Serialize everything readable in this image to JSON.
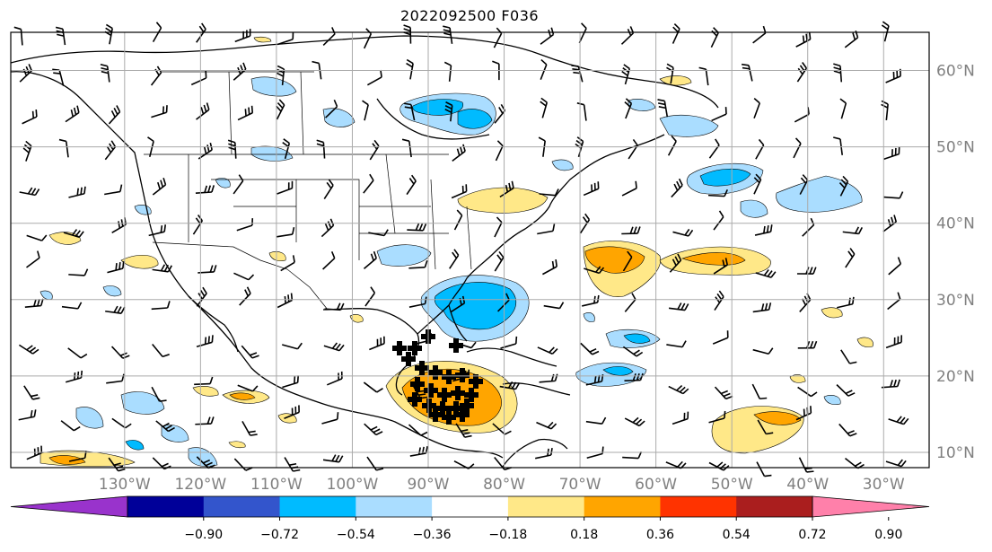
{
  "title": "2022092500 F036",
  "map": {
    "projection": "PlateCarree",
    "lon_range": [
      -145,
      -24
    ],
    "lat_range": [
      8,
      65
    ],
    "lon_ticks": [
      {
        "lon": -130,
        "label": "130°W"
      },
      {
        "lon": -120,
        "label": "120°W"
      },
      {
        "lon": -110,
        "label": "110°W"
      },
      {
        "lon": -100,
        "label": "100°W"
      },
      {
        "lon": -90,
        "label": "90°W"
      },
      {
        "lon": -80,
        "label": "80°W"
      },
      {
        "lon": -70,
        "label": "70°W"
      },
      {
        "lon": -60,
        "label": "60°W"
      },
      {
        "lon": -50,
        "label": "50°W"
      },
      {
        "lon": -40,
        "label": "40°W"
      },
      {
        "lon": -30,
        "label": "30°W"
      }
    ],
    "lat_ticks": [
      {
        "lat": 60,
        "label": "60°N"
      },
      {
        "lat": 50,
        "label": "50°N"
      },
      {
        "lat": 40,
        "label": "40°N"
      },
      {
        "lat": 30,
        "label": "30°N"
      },
      {
        "lat": 20,
        "label": "20°N"
      },
      {
        "lat": 10,
        "label": "10°N"
      }
    ],
    "grid": true,
    "features": [
      "coastlines",
      "country borders",
      "US state borders",
      "wind barbs",
      "shaded anomaly field"
    ]
  },
  "colorbar": {
    "orientation": "horizontal",
    "extend": "both",
    "labels": [
      "−0.90",
      "−0.72",
      "−0.54",
      "−0.36",
      "−0.18",
      "0.18",
      "0.36",
      "0.54",
      "0.72",
      "0.90"
    ],
    "colors": [
      "#9933cc",
      "#000099",
      "#3355cc",
      "#00bbff",
      "#aaddff",
      "#ffffff",
      "#ffe888",
      "#ffa500",
      "#ff3300",
      "#aa1e1e",
      "#ff80aa"
    ]
  },
  "colors": {
    "pos1": "#ffe888",
    "pos2": "#ffa500",
    "neg1": "#aaddff",
    "neg2": "#00bbff",
    "grid": "#aaaaaa"
  }
}
